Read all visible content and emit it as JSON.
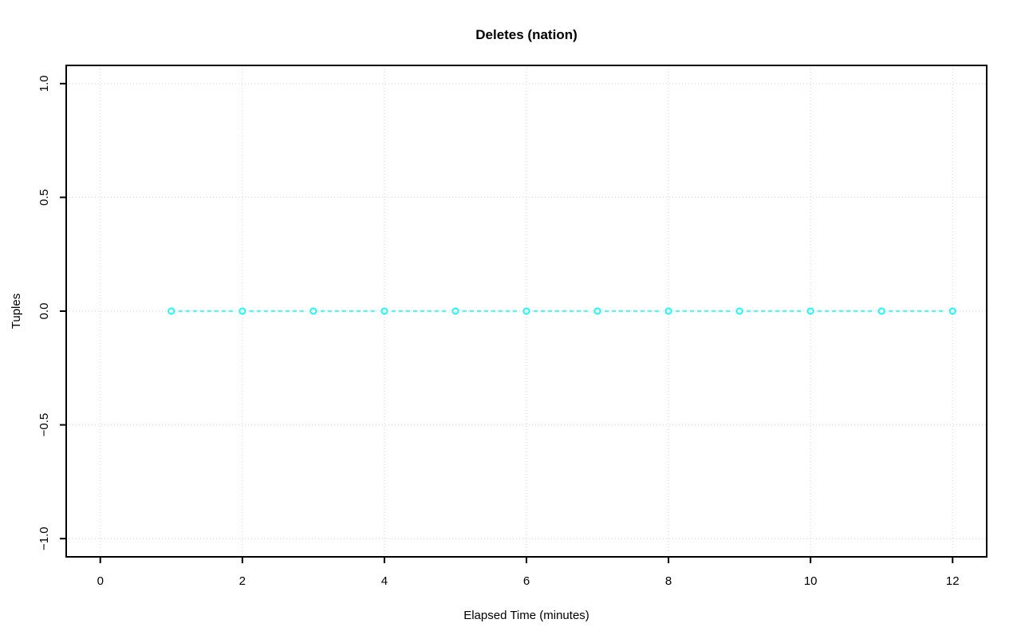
{
  "chart_data": {
    "type": "line",
    "title": "Deletes (nation)",
    "xlabel": "Elapsed Time (minutes)",
    "ylabel": "Tuples",
    "x": [
      1,
      2,
      3,
      4,
      5,
      6,
      7,
      8,
      9,
      10,
      11,
      12
    ],
    "y": [
      0,
      0,
      0,
      0,
      0,
      0,
      0,
      0,
      0,
      0,
      0,
      0
    ],
    "xlim": [
      -0.48,
      12.48
    ],
    "ylim": [
      -1.08,
      1.08
    ],
    "xticks": [
      0,
      2,
      4,
      6,
      8,
      10,
      12
    ],
    "yticks": [
      -1.0,
      -0.5,
      0.0,
      0.5,
      1.0
    ],
    "xtick_labels": [
      "0",
      "2",
      "4",
      "6",
      "8",
      "10",
      "12"
    ],
    "ytick_labels": [
      "−1.0",
      "−0.5",
      "0.0",
      "0.5",
      "1.0"
    ],
    "grid": true,
    "grid_style": "dotted",
    "line_style": "dashed",
    "marker": "open-circle",
    "legend": null,
    "colors": {
      "series": "#00FFFF",
      "grid": "#D3D3D3",
      "axis": "#000000",
      "text": "#000000",
      "background": "#FFFFFF"
    }
  }
}
